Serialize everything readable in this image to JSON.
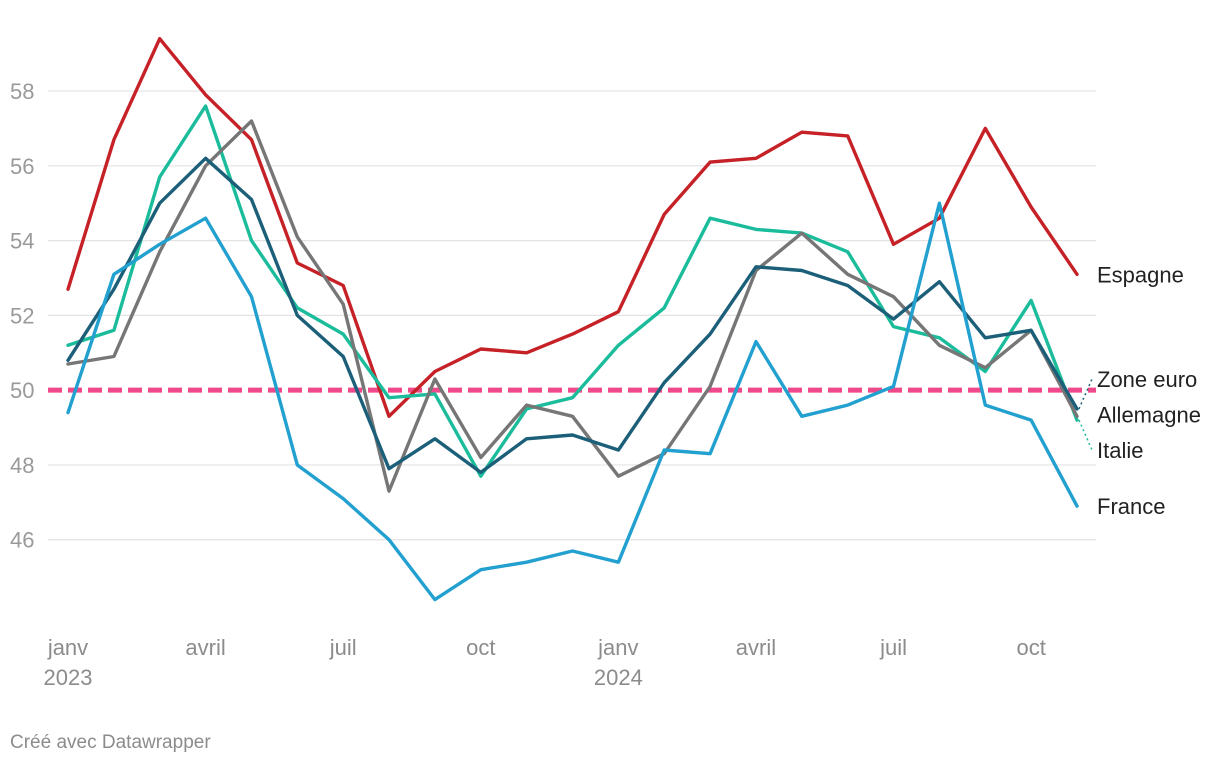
{
  "chart_data": {
    "type": "line",
    "title": "",
    "xlabel": "",
    "ylabel": "",
    "x": [
      "2023-01",
      "2023-02",
      "2023-03",
      "2023-04",
      "2023-05",
      "2023-06",
      "2023-07",
      "2023-08",
      "2023-09",
      "2023-10",
      "2023-11",
      "2023-12",
      "2024-01",
      "2024-02",
      "2024-03",
      "2024-04",
      "2024-05",
      "2024-06",
      "2024-07",
      "2024-08",
      "2024-09",
      "2024-10",
      "2024-11"
    ],
    "x_tick_labels": [
      {
        "x": "2023-01",
        "line1": "janv",
        "line2": "2023"
      },
      {
        "x": "2023-04",
        "line1": "avril",
        "line2": ""
      },
      {
        "x": "2023-07",
        "line1": "juil",
        "line2": ""
      },
      {
        "x": "2023-10",
        "line1": "oct",
        "line2": ""
      },
      {
        "x": "2024-01",
        "line1": "janv",
        "line2": "2024"
      },
      {
        "x": "2024-04",
        "line1": "avril",
        "line2": ""
      },
      {
        "x": "2024-07",
        "line1": "juil",
        "line2": ""
      },
      {
        "x": "2024-10",
        "line1": "oct",
        "line2": ""
      }
    ],
    "y_ticks": [
      46,
      48,
      50,
      52,
      54,
      56,
      58
    ],
    "ylim": [
      43.8,
      59.9
    ],
    "grid": true,
    "reference_line": {
      "value": 50,
      "color": "#f0498b",
      "style": "dashed"
    },
    "series": [
      {
        "name": "Espagne",
        "color": "#c52127",
        "values": [
          52.7,
          56.7,
          59.4,
          57.9,
          56.7,
          53.4,
          52.8,
          49.3,
          50.5,
          51.1,
          51.0,
          51.5,
          52.1,
          54.7,
          56.1,
          56.2,
          56.9,
          56.8,
          53.9,
          54.6,
          57.0,
          54.9,
          53.1
        ]
      },
      {
        "name": "Italie",
        "color": "#1bbc9b",
        "values": [
          51.2,
          51.6,
          55.7,
          57.6,
          54.0,
          52.2,
          51.5,
          49.8,
          49.9,
          47.7,
          49.5,
          49.8,
          51.2,
          52.2,
          54.6,
          54.3,
          54.2,
          53.7,
          51.7,
          51.4,
          50.5,
          52.4,
          49.2
        ]
      },
      {
        "name": "Allemagne",
        "color": "#767676",
        "values": [
          50.7,
          50.9,
          53.7,
          56.0,
          57.2,
          54.1,
          52.3,
          47.3,
          50.3,
          48.2,
          49.6,
          49.3,
          47.7,
          48.3,
          50.1,
          53.2,
          54.2,
          53.1,
          52.5,
          51.2,
          50.6,
          51.6,
          49.3
        ]
      },
      {
        "name": "Zone euro",
        "color": "#1c5f79",
        "values": [
          50.8,
          52.7,
          55.0,
          56.2,
          55.1,
          52.0,
          50.9,
          47.9,
          48.7,
          47.8,
          48.7,
          48.8,
          48.4,
          50.2,
          51.5,
          53.3,
          53.2,
          52.8,
          51.9,
          52.9,
          51.4,
          51.6,
          49.5
        ]
      },
      {
        "name": "France",
        "color": "#22a0cf",
        "values": [
          49.4,
          53.1,
          53.9,
          54.6,
          52.5,
          48.0,
          47.1,
          46.0,
          44.4,
          45.2,
          45.4,
          45.7,
          45.4,
          48.4,
          48.3,
          51.3,
          49.3,
          49.6,
          50.1,
          55.0,
          49.6,
          49.2,
          46.9
        ]
      }
    ],
    "end_labels": [
      {
        "name": "Espagne",
        "value": 53.1
      },
      {
        "name": "Zone euro",
        "value": 50.3
      },
      {
        "name": "Allemagne",
        "value": 49.35
      },
      {
        "name": "Italie",
        "value": 48.4
      },
      {
        "name": "France",
        "value": 46.9
      }
    ]
  },
  "credit": "Créé avec Datawrapper"
}
